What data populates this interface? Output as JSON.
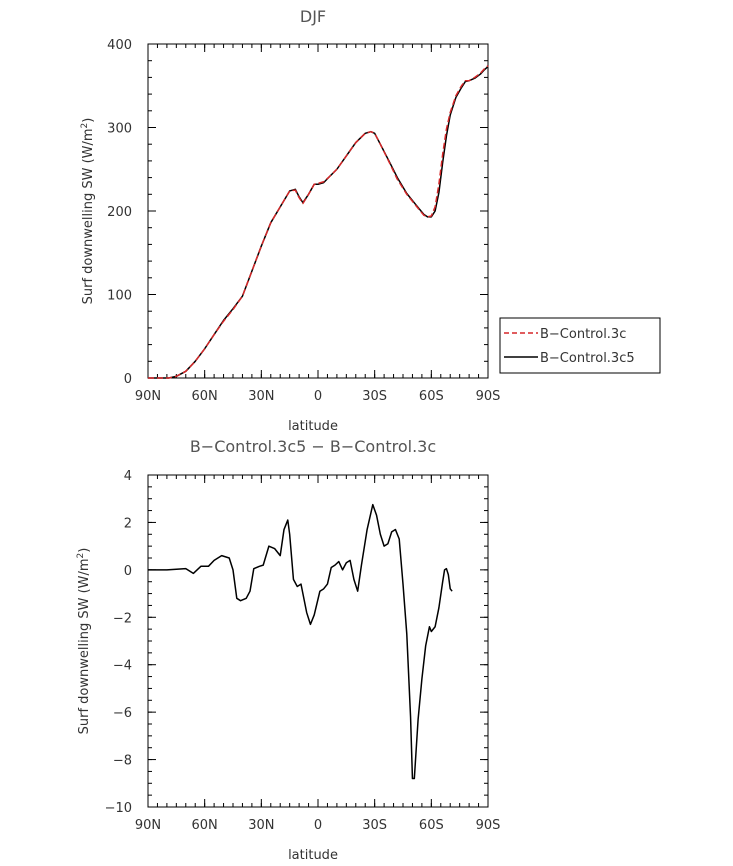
{
  "chart_data": [
    {
      "type": "line",
      "title": "DJF",
      "xlabel": "latitude",
      "ylabel": "Surf downwelling SW (W/m",
      "ylabel_sup": "2",
      "ylabel_end": ")",
      "xlim": [
        90,
        -90
      ],
      "ylim": [
        0,
        400
      ],
      "x_ticks": [
        {
          "value": 90,
          "label": "90N"
        },
        {
          "value": 60,
          "label": "60N"
        },
        {
          "value": 30,
          "label": "30N"
        },
        {
          "value": 0,
          "label": "0"
        },
        {
          "value": -30,
          "label": "30S"
        },
        {
          "value": -60,
          "label": "60S"
        },
        {
          "value": -90,
          "label": "90S"
        }
      ],
      "y_ticks": [
        {
          "value": 0,
          "label": "0"
        },
        {
          "value": 100,
          "label": "100"
        },
        {
          "value": 200,
          "label": "200"
        },
        {
          "value": 300,
          "label": "300"
        },
        {
          "value": 400,
          "label": "400"
        }
      ],
      "legend_position": "right",
      "series": [
        {
          "name": "B−Control.3c",
          "color": "#d62728",
          "dash": true,
          "points": [
            [
              90,
              0
            ],
            [
              84,
              0
            ],
            [
              79,
              0
            ],
            [
              75,
              2
            ],
            [
              70,
              8
            ],
            [
              65,
              20
            ],
            [
              60,
              35
            ],
            [
              55,
              52
            ],
            [
              50,
              68
            ],
            [
              45,
              82
            ],
            [
              40,
              98
            ],
            [
              35,
              128
            ],
            [
              30,
              158
            ],
            [
              25,
              186
            ],
            [
              20,
              205
            ],
            [
              15,
              224
            ],
            [
              12,
              225
            ],
            [
              10,
              216
            ],
            [
              8,
              209
            ],
            [
              5,
              220
            ],
            [
              2,
              232
            ],
            [
              0,
              233
            ],
            [
              -3,
              235
            ],
            [
              -6,
              241
            ],
            [
              -10,
              250
            ],
            [
              -15,
              266
            ],
            [
              -20,
              282
            ],
            [
              -25,
              293
            ],
            [
              -28,
              295
            ],
            [
              -30,
              293
            ],
            [
              -33,
              280
            ],
            [
              -38,
              257
            ],
            [
              -42,
              238
            ],
            [
              -47,
              220
            ],
            [
              -52,
              206
            ],
            [
              -56,
              195
            ],
            [
              -58,
              193
            ],
            [
              -60,
              194
            ],
            [
              -62,
              205
            ],
            [
              -64,
              232
            ],
            [
              -66,
              268
            ],
            [
              -68,
              298
            ],
            [
              -70,
              318
            ],
            [
              -73,
              338
            ],
            [
              -76,
              350
            ],
            [
              -78,
              356
            ],
            [
              -80,
              356
            ],
            [
              -83,
              360
            ],
            [
              -86,
              365
            ],
            [
              -88,
              370
            ],
            [
              -90,
              374
            ]
          ]
        },
        {
          "name": "B−Control.3c5",
          "color": "#000000",
          "dash": false,
          "points": [
            [
              90,
              0
            ],
            [
              84,
              0
            ],
            [
              79,
              0
            ],
            [
              75,
              2
            ],
            [
              70,
              8
            ],
            [
              65,
              20
            ],
            [
              60,
              35
            ],
            [
              55,
              52
            ],
            [
              50,
              69
            ],
            [
              45,
              83
            ],
            [
              40,
              98
            ],
            [
              35,
              128
            ],
            [
              30,
              158
            ],
            [
              25,
              186
            ],
            [
              20,
              205
            ],
            [
              15,
              224
            ],
            [
              12,
              226
            ],
            [
              10,
              217
            ],
            [
              8,
              210
            ],
            [
              5,
              220
            ],
            [
              2,
              232
            ],
            [
              0,
              232
            ],
            [
              -3,
              234
            ],
            [
              -6,
              241
            ],
            [
              -10,
              250
            ],
            [
              -15,
              266
            ],
            [
              -20,
              282
            ],
            [
              -25,
              293
            ],
            [
              -28,
              295
            ],
            [
              -30,
              293
            ],
            [
              -33,
              280
            ],
            [
              -38,
              258
            ],
            [
              -42,
              240
            ],
            [
              -47,
              221
            ],
            [
              -52,
              207
            ],
            [
              -56,
              196
            ],
            [
              -58,
              193
            ],
            [
              -60,
              193
            ],
            [
              -62,
              200
            ],
            [
              -64,
              222
            ],
            [
              -66,
              258
            ],
            [
              -68,
              290
            ],
            [
              -70,
              315
            ],
            [
              -73,
              336
            ],
            [
              -76,
              348
            ],
            [
              -78,
              355
            ],
            [
              -80,
              356
            ],
            [
              -83,
              359
            ],
            [
              -86,
              364
            ],
            [
              -88,
              369
            ],
            [
              -90,
              373
            ]
          ]
        }
      ]
    },
    {
      "type": "line",
      "title": "B−Control.3c5 − B−Control.3c",
      "xlabel": "latitude",
      "ylabel": "Surf downwelling SW (W/m",
      "ylabel_sup": "2",
      "ylabel_end": ")",
      "xlim": [
        90,
        -90
      ],
      "ylim": [
        -10,
        4
      ],
      "x_ticks": [
        {
          "value": 90,
          "label": "90N"
        },
        {
          "value": 60,
          "label": "60N"
        },
        {
          "value": 30,
          "label": "30N"
        },
        {
          "value": 0,
          "label": "0"
        },
        {
          "value": -30,
          "label": "30S"
        },
        {
          "value": -60,
          "label": "60S"
        },
        {
          "value": -90,
          "label": "90S"
        }
      ],
      "y_ticks": [
        {
          "value": -10,
          "label": "−10"
        },
        {
          "value": -8,
          "label": "−8"
        },
        {
          "value": -6,
          "label": "−6"
        },
        {
          "value": -4,
          "label": "−4"
        },
        {
          "value": -2,
          "label": "−2"
        },
        {
          "value": 0,
          "label": "0"
        },
        {
          "value": 2,
          "label": "2"
        },
        {
          "value": 4,
          "label": "4"
        }
      ],
      "series": [
        {
          "color": "#000000",
          "dash": false,
          "points": [
            [
              90,
              0
            ],
            [
              80,
              0
            ],
            [
              70,
              0.05
            ],
            [
              66,
              -0.15
            ],
            [
              62,
              0.15
            ],
            [
              58,
              0.15
            ],
            [
              55,
              0.4
            ],
            [
              51,
              0.6
            ],
            [
              47,
              0.5
            ],
            [
              45,
              0
            ],
            [
              43,
              -1.2
            ],
            [
              41,
              -1.3
            ],
            [
              38,
              -1.2
            ],
            [
              36,
              -0.9
            ],
            [
              34,
              0.05
            ],
            [
              31,
              0.15
            ],
            [
              29,
              0.2
            ],
            [
              26,
              1
            ],
            [
              23,
              0.9
            ],
            [
              20,
              0.6
            ],
            [
              18,
              1.7
            ],
            [
              16,
              2.1
            ],
            [
              15,
              1.5
            ],
            [
              13,
              -0.4
            ],
            [
              11,
              -0.7
            ],
            [
              9,
              -0.6
            ],
            [
              6,
              -1.8
            ],
            [
              4,
              -2.3
            ],
            [
              2,
              -1.9
            ],
            [
              -1,
              -0.9
            ],
            [
              -3,
              -0.8
            ],
            [
              -5,
              -0.6
            ],
            [
              -7,
              0.1
            ],
            [
              -9,
              0.2
            ],
            [
              -11,
              0.35
            ],
            [
              -13,
              0
            ],
            [
              -15,
              0.3
            ],
            [
              -17,
              0.4
            ],
            [
              -19,
              -0.4
            ],
            [
              -21,
              -0.9
            ],
            [
              -23,
              0.2
            ],
            [
              -26,
              1.7
            ],
            [
              -28,
              2.4
            ],
            [
              -29,
              2.75
            ],
            [
              -31,
              2.3
            ],
            [
              -33,
              1.5
            ],
            [
              -35,
              1
            ],
            [
              -37,
              1.1
            ],
            [
              -39,
              1.6
            ],
            [
              -41,
              1.7
            ],
            [
              -43,
              1.3
            ],
            [
              -45,
              -0.6
            ],
            [
              -47,
              -2.7
            ],
            [
              -49,
              -6.2
            ],
            [
              -50,
              -8.8
            ],
            [
              -51,
              -8.8
            ],
            [
              -53,
              -6.3
            ],
            [
              -55,
              -4.6
            ],
            [
              -57,
              -3.2
            ],
            [
              -59,
              -2.4
            ],
            [
              -60,
              -2.6
            ],
            [
              -62,
              -2.4
            ],
            [
              -64,
              -1.6
            ],
            [
              -66,
              -0.5
            ],
            [
              -67,
              0
            ],
            [
              -68,
              0.05
            ],
            [
              -69,
              -0.2
            ],
            [
              -70,
              -0.8
            ],
            [
              -71,
              -0.9
            ]
          ]
        }
      ]
    }
  ]
}
